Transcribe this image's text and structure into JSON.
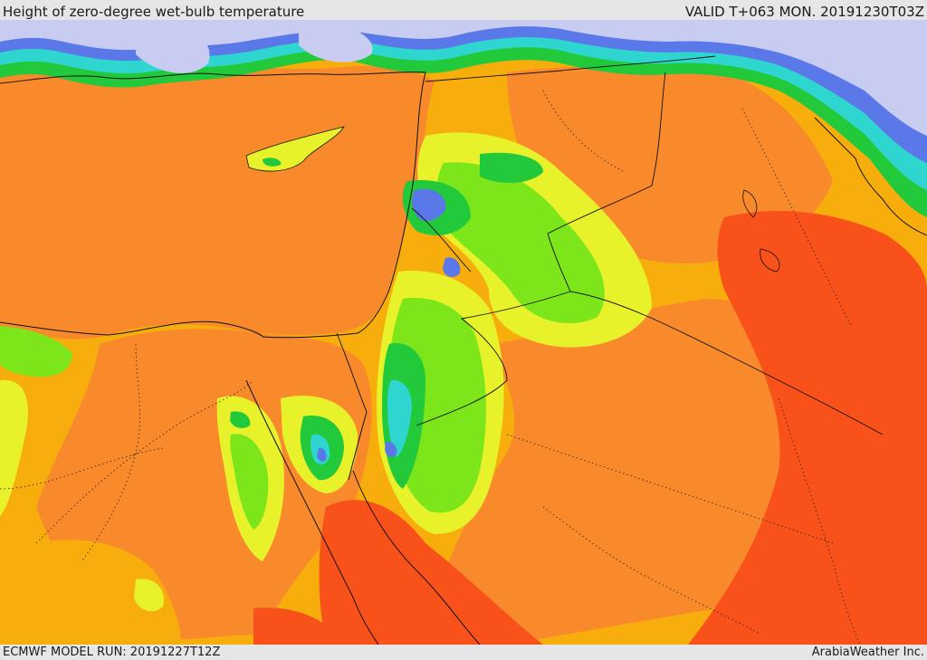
{
  "header": {
    "title": "Height of zero-degree wet-bulb temperature",
    "valid": "VALID T+063 MON. 20191230T03Z"
  },
  "footer": {
    "model_run": "ECMWF MODEL RUN: 20191227T12Z",
    "credit": "ArabiaWeather Inc."
  },
  "palette": {
    "lavender": "#c8ccf0",
    "blue": "#5a78e8",
    "cyan": "#2fd6d0",
    "green": "#22c93a",
    "lime": "#7de61a",
    "yellow": "#e8f22a",
    "amber": "#f7ae0d",
    "orange": "#f7862a",
    "red_orange": "#f85119",
    "sea_orange": "#f88a2c"
  }
}
